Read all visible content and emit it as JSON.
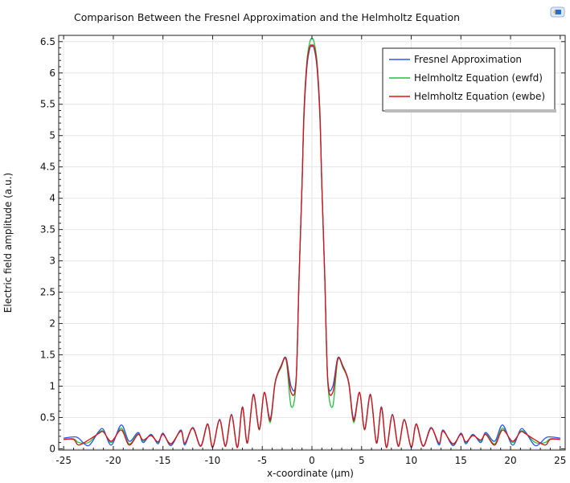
{
  "toolbar": {
    "icon": "comsol-view-icon"
  },
  "colors": {
    "fresnel": "#2b58f0",
    "ewfd": "#20c040",
    "ewbe": "#e01010",
    "grid": "#e6e6e6",
    "axis": "#222222",
    "icon_blue": "#1f6fd6"
  },
  "chart_data": {
    "type": "line",
    "title": "Comparison Between the Fresnel Approximation and the Helmholtz Equation",
    "xlabel": "x-coordinate (µm)",
    "ylabel": "Electric field amplitude (a.u.)",
    "xlim": [
      -25.5,
      25.5
    ],
    "ylim": [
      -0.02,
      6.6
    ],
    "xticks": [
      -25,
      -20,
      -15,
      -10,
      -5,
      0,
      5,
      10,
      15,
      20,
      25
    ],
    "xtick_labels": [
      "-25",
      "-20",
      "-15",
      "-10",
      "-5",
      "0",
      "5",
      "10",
      "15",
      "20",
      "25"
    ],
    "yticks": [
      0,
      0.5,
      1,
      1.5,
      2,
      2.5,
      3,
      3.5,
      4,
      4.5,
      5,
      5.5,
      6,
      6.5
    ],
    "ytick_labels": [
      "0",
      "0.5",
      "1",
      "1.5",
      "2",
      "2.5",
      "3",
      "3.5",
      "4",
      "4.5",
      "5",
      "5.5",
      "6",
      "6.5"
    ],
    "grid": true,
    "legend_position": "top-right",
    "series": [
      {
        "name": "Fresnel Approximation",
        "color": "#2b58f0",
        "x": [
          -25,
          -24,
          -23.5,
          -22.5,
          -21.5,
          -21,
          -20.2,
          -19.2,
          -18.4,
          -17.5,
          -17,
          -16.2,
          -15.5,
          -15,
          -14.2,
          -13.2,
          -12.8,
          -12,
          -11.2,
          -10.5,
          -10,
          -9.3,
          -8.7,
          -8.1,
          -7.5,
          -7,
          -6.5,
          -5.9,
          -5.3,
          -4.8,
          -4.2,
          -3.7,
          -3.1,
          -2.6,
          -2.1,
          -1.6,
          -1.3,
          -1.0,
          -0.8,
          -0.5,
          -0.2,
          0,
          0.2,
          0.5,
          0.8,
          1.0,
          1.3,
          1.6,
          2.1,
          2.6,
          3.1,
          3.7,
          4.2,
          4.8,
          5.3,
          5.9,
          6.5,
          7,
          7.5,
          8.1,
          8.7,
          9.3,
          10,
          10.5,
          11.2,
          12,
          12.8,
          13.2,
          14.2,
          15,
          15.5,
          16.2,
          17,
          17.5,
          18.4,
          19.2,
          20.2,
          21,
          21.5,
          22.5,
          23.5,
          24,
          25
        ],
        "y": [
          0.17,
          0.19,
          0.17,
          0.05,
          0.27,
          0.31,
          0.06,
          0.38,
          0.12,
          0.26,
          0.1,
          0.23,
          0.08,
          0.25,
          0.05,
          0.3,
          0.06,
          0.34,
          0.05,
          0.4,
          0.02,
          0.47,
          0.05,
          0.55,
          0.03,
          0.67,
          0.1,
          0.87,
          0.32,
          0.9,
          0.48,
          1.07,
          1.33,
          1.45,
          1.0,
          1.1,
          2.7,
          4.2,
          5.3,
          6.1,
          6.4,
          6.42,
          6.4,
          6.1,
          5.3,
          4.2,
          2.7,
          1.1,
          1.0,
          1.45,
          1.33,
          1.07,
          0.48,
          0.9,
          0.32,
          0.87,
          0.1,
          0.67,
          0.03,
          0.55,
          0.05,
          0.47,
          0.02,
          0.4,
          0.05,
          0.34,
          0.06,
          0.3,
          0.05,
          0.25,
          0.08,
          0.23,
          0.1,
          0.26,
          0.12,
          0.38,
          0.06,
          0.31,
          0.27,
          0.05,
          0.17,
          0.19,
          0.17
        ]
      },
      {
        "name": "Helmholtz Equation (ewfd)",
        "color": "#20c040",
        "x": [
          -25,
          -24,
          -23.5,
          -22.5,
          -21.5,
          -21,
          -20.2,
          -19.2,
          -18.4,
          -17.5,
          -17,
          -16.2,
          -15.5,
          -15,
          -14.2,
          -13.2,
          -12.8,
          -12,
          -11.2,
          -10.5,
          -10,
          -9.3,
          -8.7,
          -8.1,
          -7.5,
          -7,
          -6.5,
          -5.9,
          -5.3,
          -4.8,
          -4.2,
          -3.7,
          -3.1,
          -2.6,
          -2.1,
          -1.6,
          -1.3,
          -1.0,
          -0.8,
          -0.5,
          -0.2,
          0,
          0.2,
          0.5,
          0.8,
          1.0,
          1.3,
          1.6,
          2.1,
          2.6,
          3.1,
          3.7,
          4.2,
          4.8,
          5.3,
          5.9,
          6.5,
          7,
          7.5,
          8.1,
          8.7,
          9.3,
          10,
          10.5,
          11.2,
          12,
          12.8,
          13.2,
          14.2,
          15,
          15.5,
          16.2,
          17,
          17.5,
          18.4,
          19.2,
          20.2,
          21,
          21.5,
          22.5,
          23.5,
          24,
          25
        ],
        "y": [
          0.15,
          0.16,
          0.1,
          0.1,
          0.25,
          0.28,
          0.1,
          0.33,
          0.08,
          0.24,
          0.12,
          0.22,
          0.1,
          0.24,
          0.07,
          0.29,
          0.08,
          0.33,
          0.04,
          0.39,
          0.03,
          0.46,
          0.04,
          0.54,
          0.02,
          0.66,
          0.09,
          0.86,
          0.3,
          0.9,
          0.42,
          1.05,
          1.3,
          1.42,
          0.68,
          1.05,
          2.7,
          4.2,
          5.4,
          6.2,
          6.5,
          6.55,
          6.5,
          6.2,
          5.4,
          4.2,
          2.7,
          1.05,
          0.68,
          1.42,
          1.3,
          1.05,
          0.42,
          0.9,
          0.3,
          0.86,
          0.09,
          0.66,
          0.02,
          0.54,
          0.04,
          0.46,
          0.03,
          0.39,
          0.04,
          0.33,
          0.08,
          0.29,
          0.07,
          0.24,
          0.1,
          0.22,
          0.12,
          0.24,
          0.08,
          0.33,
          0.1,
          0.28,
          0.25,
          0.1,
          0.1,
          0.16,
          0.15
        ]
      },
      {
        "name": "Helmholtz Equation (ewbe)",
        "color": "#e01010",
        "x": [
          -25,
          -24,
          -23.5,
          -22.5,
          -21.5,
          -21,
          -20.2,
          -19.2,
          -18.4,
          -17.5,
          -17,
          -16.2,
          -15.5,
          -15,
          -14.2,
          -13.2,
          -12.8,
          -12,
          -11.2,
          -10.5,
          -10,
          -9.3,
          -8.7,
          -8.1,
          -7.5,
          -7,
          -6.5,
          -5.9,
          -5.3,
          -4.8,
          -4.2,
          -3.7,
          -3.1,
          -2.6,
          -2.1,
          -1.6,
          -1.3,
          -1.0,
          -0.8,
          -0.5,
          -0.2,
          0,
          0.2,
          0.5,
          0.8,
          1.0,
          1.3,
          1.6,
          2.1,
          2.6,
          3.1,
          3.7,
          4.2,
          4.8,
          5.3,
          5.9,
          6.5,
          7,
          7.5,
          8.1,
          8.7,
          9.3,
          10,
          10.5,
          11.2,
          12,
          12.8,
          13.2,
          14.2,
          15,
          15.5,
          16.2,
          17,
          17.5,
          18.4,
          19.2,
          20.2,
          21,
          21.5,
          22.5,
          23.5,
          24,
          25
        ],
        "y": [
          0.15,
          0.15,
          0.06,
          0.14,
          0.24,
          0.27,
          0.12,
          0.3,
          0.06,
          0.23,
          0.14,
          0.21,
          0.11,
          0.23,
          0.08,
          0.28,
          0.09,
          0.33,
          0.04,
          0.39,
          0.03,
          0.46,
          0.04,
          0.54,
          0.02,
          0.66,
          0.09,
          0.86,
          0.31,
          0.9,
          0.45,
          1.06,
          1.32,
          1.43,
          0.9,
          1.08,
          2.7,
          4.2,
          5.35,
          6.15,
          6.42,
          6.44,
          6.42,
          6.15,
          5.35,
          4.2,
          2.7,
          1.08,
          0.9,
          1.43,
          1.32,
          1.06,
          0.45,
          0.9,
          0.31,
          0.86,
          0.09,
          0.66,
          0.02,
          0.54,
          0.04,
          0.46,
          0.03,
          0.39,
          0.04,
          0.33,
          0.09,
          0.28,
          0.08,
          0.23,
          0.11,
          0.21,
          0.14,
          0.23,
          0.06,
          0.3,
          0.12,
          0.27,
          0.24,
          0.14,
          0.06,
          0.15,
          0.15
        ]
      }
    ]
  }
}
